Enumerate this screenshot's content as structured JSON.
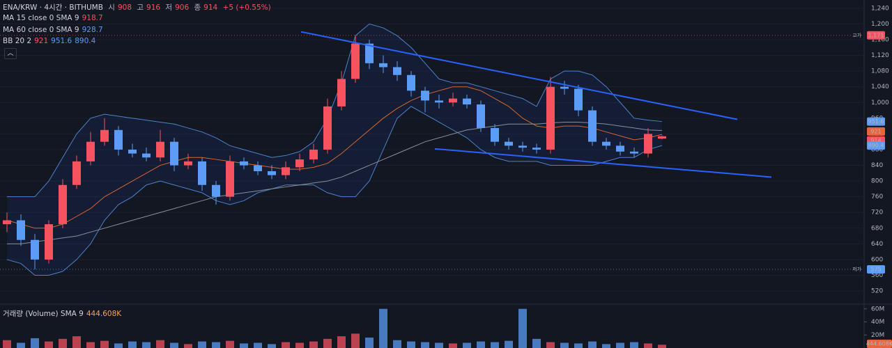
{
  "chart_data": {
    "type": "candlestick",
    "title": "ENA/KRW · 4시간 · BITHUMB",
    "ohlc_names": [
      "시",
      "고",
      "저",
      "종"
    ],
    "change": "+5 (+0.55%)",
    "up_color": "#f7525f",
    "down_color": "#5b9cf6",
    "xlim": [
      0,
      62
    ],
    "ylim": [
      490,
      1261
    ],
    "yticks": [
      520,
      560,
      600,
      640,
      680,
      720,
      760,
      800,
      840,
      880,
      920,
      960,
      {
        "value": 1000,
        "label": "1,000"
      },
      {
        "value": 1040,
        "label": "1,040"
      },
      {
        "value": 1080,
        "label": "1,080"
      },
      {
        "value": 1120,
        "label": "1,120"
      },
      {
        "value": 1160,
        "label": "1,160"
      },
      {
        "value": 1200,
        "label": "1,200"
      },
      {
        "value": 1240,
        "label": "1,240"
      }
    ],
    "open": [
      690,
      700,
      650,
      600,
      690,
      790,
      850,
      900,
      930,
      880,
      870,
      860,
      900,
      840,
      850,
      790,
      760,
      850,
      840,
      825,
      815,
      835,
      855,
      880,
      990,
      1060,
      1150,
      1100,
      1090,
      1070,
      1030,
      1005,
      1000,
      1010,
      995,
      935,
      900,
      890,
      885,
      880,
      1040,
      1035,
      980,
      900,
      890,
      875,
      870,
      908
    ],
    "high": [
      720,
      715,
      665,
      700,
      805,
      865,
      925,
      960,
      940,
      895,
      885,
      930,
      910,
      870,
      860,
      800,
      865,
      860,
      850,
      840,
      850,
      870,
      895,
      1010,
      1080,
      1171,
      1160,
      1120,
      1105,
      1080,
      1040,
      1020,
      1025,
      1020,
      1005,
      945,
      910,
      900,
      895,
      1065,
      1055,
      1045,
      990,
      910,
      900,
      885,
      935,
      916
    ],
    "low": [
      670,
      635,
      575,
      590,
      680,
      780,
      840,
      890,
      865,
      860,
      850,
      850,
      825,
      830,
      775,
      740,
      750,
      830,
      815,
      805,
      805,
      825,
      845,
      870,
      980,
      1050,
      1085,
      1075,
      1055,
      1015,
      975,
      985,
      990,
      985,
      925,
      890,
      880,
      875,
      870,
      870,
      1020,
      965,
      890,
      880,
      865,
      860,
      860,
      906
    ],
    "close": [
      700,
      650,
      600,
      690,
      790,
      850,
      900,
      930,
      880,
      870,
      860,
      900,
      840,
      850,
      790,
      760,
      850,
      840,
      825,
      815,
      835,
      855,
      880,
      990,
      1060,
      1150,
      1100,
      1090,
      1070,
      1030,
      1005,
      1000,
      1010,
      995,
      935,
      900,
      890,
      885,
      880,
      1040,
      1035,
      980,
      900,
      890,
      875,
      870,
      920,
      914
    ],
    "indicators": [
      {
        "name": "MA 15 close 0 SMA 9",
        "color": "#f7525f",
        "line_color": "#d9662f",
        "values": [
          700,
          690,
          680,
          680,
          690,
          710,
          730,
          760,
          780,
          800,
          820,
          840,
          850,
          860,
          860,
          855,
          850,
          845,
          840,
          835,
          830,
          830,
          835,
          845,
          870,
          900,
          930,
          960,
          985,
          1005,
          1020,
          1030,
          1040,
          1040,
          1030,
          1010,
          990,
          960,
          940,
          935,
          940,
          940,
          935,
          925,
          915,
          905,
          910,
          918.7
        ]
      },
      {
        "name": "MA 60 close 0 SMA 9",
        "color": "#5b9cf6",
        "line_color": "#8a8f99",
        "values": [
          640,
          640,
          645,
          650,
          655,
          660,
          670,
          680,
          690,
          700,
          710,
          720,
          730,
          740,
          750,
          760,
          765,
          770,
          775,
          780,
          785,
          790,
          795,
          800,
          810,
          825,
          840,
          855,
          870,
          885,
          900,
          910,
          920,
          930,
          935,
          940,
          945,
          945,
          945,
          948,
          950,
          950,
          948,
          945,
          940,
          935,
          930,
          928.7
        ]
      }
    ],
    "bb": {
      "name": "BB 20 2",
      "basis": 921,
      "color": "#5b9cf6",
      "upper": [
        760,
        760,
        760,
        800,
        860,
        920,
        960,
        970,
        965,
        960,
        955,
        950,
        945,
        935,
        925,
        910,
        890,
        880,
        870,
        860,
        865,
        875,
        900,
        960,
        1050,
        1170,
        1200,
        1190,
        1170,
        1140,
        1100,
        1060,
        1050,
        1050,
        1040,
        1030,
        1020,
        1010,
        990,
        1060,
        1080,
        1080,
        1070,
        1040,
        1000,
        960,
        955,
        951.6
      ],
      "lower": [
        600,
        590,
        560,
        560,
        570,
        600,
        640,
        700,
        740,
        760,
        790,
        800,
        790,
        780,
        770,
        750,
        740,
        750,
        770,
        780,
        790,
        790,
        790,
        770,
        760,
        760,
        800,
        880,
        960,
        990,
        970,
        950,
        930,
        910,
        880,
        860,
        850,
        850,
        850,
        840,
        840,
        840,
        840,
        850,
        860,
        860,
        880,
        890.4
      ]
    },
    "high_marker": {
      "value": 1171,
      "label": "1,171",
      "text": "고가"
    },
    "low_marker": {
      "value": 575,
      "label": "575",
      "text": "저가"
    },
    "trendlines": [
      {
        "x": [
          21.6,
          52.9
        ],
        "y": [
          1180,
          957
        ]
      },
      {
        "x": [
          31.2,
          55.35
        ],
        "y": [
          882,
          810
        ]
      }
    ],
    "volume": {
      "name": "거래량 (Volume) SMA 9",
      "sma": {
        "value": 444608,
        "label": "444.608K"
      },
      "ylim": [
        0,
        64000000
      ],
      "yticks": [
        {
          "value": 20000000,
          "label": "20M"
        },
        {
          "value": 40000000,
          "label": "40M"
        },
        {
          "value": 60000000,
          "label": "60M"
        }
      ],
      "values": [
        12000000,
        8000000,
        15000000,
        10000000,
        14000000,
        18000000,
        9000000,
        11000000,
        7000000,
        10000000,
        9000000,
        12000000,
        8000000,
        6000000,
        10000000,
        9000000,
        11000000,
        7000000,
        8000000,
        6000000,
        9000000,
        8000000,
        10000000,
        14000000,
        18000000,
        22000000,
        16000000,
        60000000,
        12000000,
        10000000,
        9000000,
        8000000,
        7000000,
        8000000,
        10000000,
        9000000,
        11000000,
        60000000,
        14000000,
        9000000,
        8000000,
        7000000,
        10000000,
        6000000,
        8000000,
        9000000,
        7000000,
        5000000
      ]
    }
  }
}
